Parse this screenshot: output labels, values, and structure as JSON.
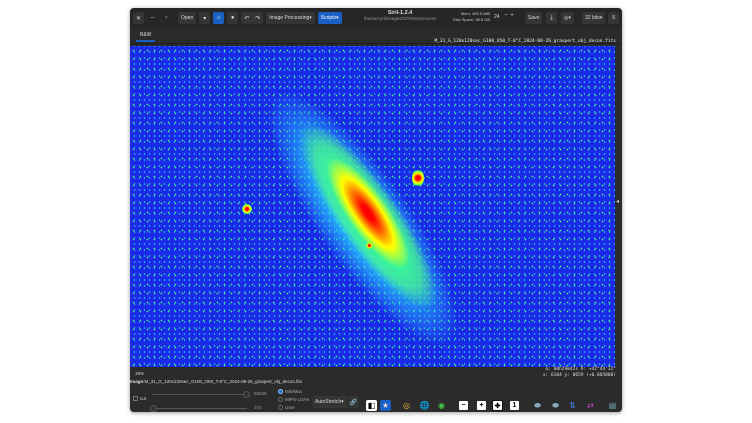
{
  "app": {
    "title": "Siril-1.2.4",
    "path": "/home/cyril/Images/CP/M31/process",
    "mem": "Mem: 409.9 MiB",
    "disk": "Disk Space: 38.8 GB",
    "threads": "24"
  },
  "toolbar": {
    "open": "Open",
    "image_processing": "Image Processing",
    "scripts": "Scripts",
    "save": "Save",
    "bits": "32 bits"
  },
  "tabs": [
    {
      "label": "B&W",
      "active": true
    }
  ],
  "image": {
    "filename": "M_31_G_120x120sec_G100_O50_T-8°C_2024-08-26_graxpert_obj_decon.fits",
    "zoom": "19%",
    "coord_world": "α: 00h29m42s  δ: +42°44'32\"",
    "coord_pixel": "x: 6104  y: 0659 (+0.005000)"
  },
  "bottom": {
    "image_label": "Image:",
    "cut_label": "cut",
    "hi_value": "65535",
    "lo_value": "374",
    "modes": [
      "Min/Max",
      "MIPS-LO/HI",
      "User"
    ],
    "selected_mode": "Min/Max",
    "stretch": "AutoStretch"
  }
}
